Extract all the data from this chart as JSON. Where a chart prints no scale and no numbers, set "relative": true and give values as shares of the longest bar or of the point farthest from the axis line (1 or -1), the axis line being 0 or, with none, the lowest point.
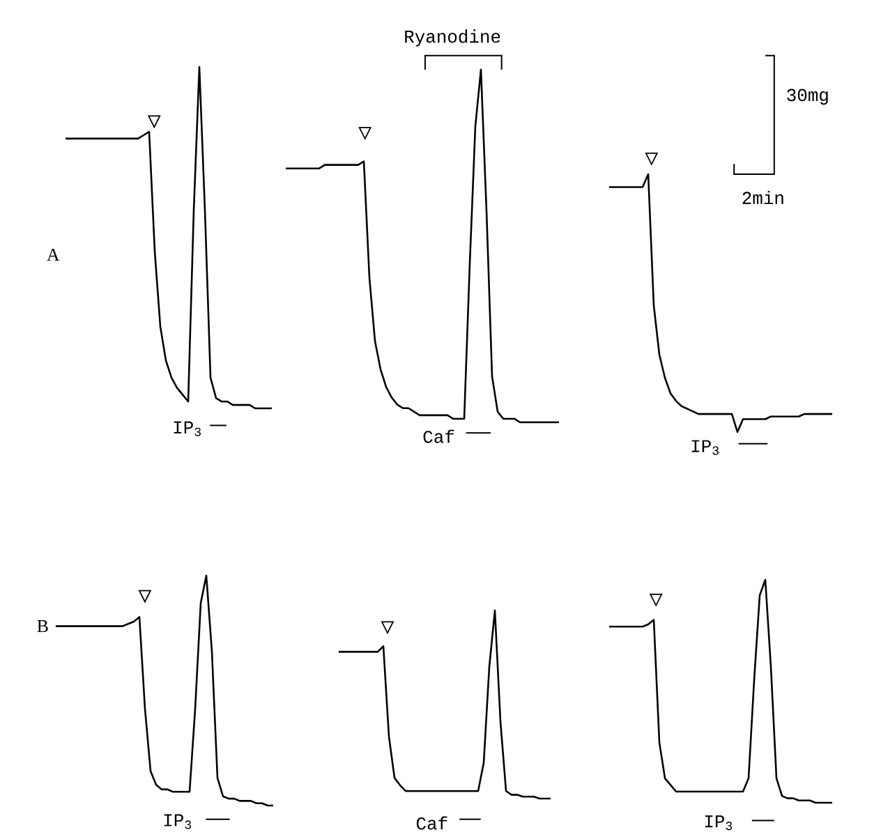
{
  "chart_data": [
    {
      "type": "line",
      "relative": true,
      "color": "#000000",
      "annotations": [
        "A",
        "IP$_{3}$"
      ],
      "categories": [
        null,
        null,
        null,
        null,
        null,
        null,
        null,
        null,
        null,
        null,
        null,
        null,
        null,
        null,
        null,
        null,
        null,
        null,
        null,
        null,
        null,
        null,
        null,
        null,
        null,
        null,
        null,
        null,
        null,
        null,
        null,
        null,
        null,
        null,
        null,
        null,
        null,
        null
      ],
      "values": [
        0.79,
        0.79,
        0.79,
        0.79,
        0.79,
        0.79,
        0.79,
        0.79,
        0.79,
        0.79,
        0.79,
        0.79,
        0.79,
        0.79,
        0.8,
        0.81,
        0.46,
        0.24,
        0.14,
        0.09,
        0.06,
        0.04,
        0.02,
        0.58,
        1.0,
        0.58,
        0.09,
        0.03,
        0.02,
        0.02,
        0.01,
        0.01,
        0.01,
        0.01,
        0,
        0,
        0,
        0
      ]
    },
    {
      "type": "line",
      "relative": true,
      "color": "#000000",
      "annotations": [
        "Ryanodine",
        "Caf"
      ],
      "categories": [
        null,
        null,
        null,
        null,
        null,
        null,
        null,
        null,
        null,
        null,
        null,
        null,
        null,
        null,
        null,
        null,
        null,
        null,
        null,
        null,
        null,
        null,
        null,
        null,
        null,
        null,
        null,
        null,
        null,
        null,
        null,
        null,
        null,
        null,
        null,
        null,
        null,
        null,
        null,
        null,
        null,
        null,
        null,
        null,
        null,
        null,
        null,
        null,
        null,
        null
      ],
      "values": [
        0.72,
        0.72,
        0.72,
        0.72,
        0.72,
        0.72,
        0.72,
        0.73,
        0.73,
        0.73,
        0.73,
        0.73,
        0.73,
        0.73,
        0.74,
        0.41,
        0.23,
        0.15,
        0.1,
        0.07,
        0.05,
        0.04,
        0.04,
        0.03,
        0.02,
        0.02,
        0.02,
        0.02,
        0.02,
        0.02,
        0.01,
        0.01,
        0.01,
        0.45,
        0.84,
        1.0,
        0.6,
        0.13,
        0.03,
        0.01,
        0.01,
        0.01,
        0,
        0,
        0,
        0,
        0,
        0,
        0,
        0
      ]
    },
    {
      "type": "line",
      "relative": true,
      "color": "#000000",
      "annotations": [
        "IP$_{3}$",
        "30mg",
        "2min"
      ],
      "categories": [
        null,
        null,
        null,
        null,
        null,
        null,
        null,
        null,
        null,
        null,
        null,
        null,
        null,
        null,
        null,
        null,
        null,
        null,
        null,
        null,
        null,
        null,
        null,
        null,
        null,
        null,
        null,
        null,
        null,
        null,
        null,
        null,
        null,
        null,
        null,
        null,
        null,
        null,
        null,
        null,
        null
      ],
      "values": [
        0.95,
        0.95,
        0.95,
        0.95,
        0.95,
        0.95,
        0.95,
        1.0,
        0.49,
        0.3,
        0.21,
        0.15,
        0.12,
        0.1,
        0.09,
        0.08,
        0.07,
        0.07,
        0.07,
        0.07,
        0.07,
        0.07,
        0.07,
        0,
        0.05,
        0.05,
        0.05,
        0.05,
        0.05,
        0.06,
        0.06,
        0.06,
        0.06,
        0.06,
        0.06,
        0.07,
        0.07,
        0.07,
        0.07,
        0.07,
        0.07
      ]
    },
    {
      "type": "line",
      "relative": true,
      "color": "#000000",
      "annotations": [
        "B",
        "IP$_{3}$"
      ],
      "categories": [
        null,
        null,
        null,
        null,
        null,
        null,
        null,
        null,
        null,
        null,
        null,
        null,
        null,
        null,
        null,
        null,
        null,
        null,
        null,
        null,
        null,
        null,
        null,
        null,
        null,
        null,
        null,
        null,
        null,
        null,
        null,
        null,
        null,
        null,
        null,
        null,
        null,
        null,
        null,
        null
      ],
      "values": [
        0.78,
        0.78,
        0.78,
        0.78,
        0.78,
        0.78,
        0.78,
        0.78,
        0.78,
        0.78,
        0.78,
        0.78,
        0.78,
        0.79,
        0.8,
        0.82,
        0.42,
        0.15,
        0.09,
        0.07,
        0.07,
        0.06,
        0.06,
        0.06,
        0.06,
        0.42,
        0.88,
        1.0,
        0.67,
        0.12,
        0.04,
        0.03,
        0.03,
        0.02,
        0.02,
        0.02,
        0.01,
        0.01,
        0,
        0
      ]
    },
    {
      "type": "line",
      "relative": true,
      "color": "#000000",
      "annotations": [
        "Caf"
      ],
      "categories": [
        null,
        null,
        null,
        null,
        null,
        null,
        null,
        null,
        null,
        null,
        null,
        null,
        null,
        null,
        null,
        null,
        null,
        null,
        null,
        null,
        null,
        null,
        null,
        null,
        null,
        null,
        null,
        null,
        null,
        null,
        null,
        null,
        null,
        null,
        null,
        null,
        null,
        null,
        null
      ],
      "values": [
        0.78,
        0.78,
        0.78,
        0.78,
        0.78,
        0.78,
        0.78,
        0.78,
        0.81,
        0.33,
        0.11,
        0.07,
        0.04,
        0.04,
        0.04,
        0.04,
        0.04,
        0.04,
        0.04,
        0.04,
        0.04,
        0.04,
        0.04,
        0.04,
        0.04,
        0.04,
        0.19,
        0.7,
        1.0,
        0.41,
        0.04,
        0.02,
        0.02,
        0.01,
        0.01,
        0.01,
        0,
        0,
        0
      ]
    },
    {
      "type": "line",
      "relative": true,
      "color": "#000000",
      "annotations": [
        "IP$_{3}$"
      ],
      "categories": [
        null,
        null,
        null,
        null,
        null,
        null,
        null,
        null,
        null,
        null,
        null,
        null,
        null,
        null,
        null,
        null,
        null,
        null,
        null,
        null,
        null,
        null,
        null,
        null,
        null,
        null,
        null,
        null,
        null,
        null,
        null,
        null,
        null,
        null,
        null,
        null,
        null,
        null,
        null,
        null,
        null
      ],
      "values": [
        0.79,
        0.79,
        0.79,
        0.79,
        0.79,
        0.79,
        0.79,
        0.8,
        0.82,
        0.27,
        0.11,
        0.08,
        0.05,
        0.05,
        0.05,
        0.05,
        0.05,
        0.05,
        0.05,
        0.05,
        0.05,
        0.05,
        0.05,
        0.05,
        0.05,
        0.11,
        0.55,
        0.93,
        1.0,
        0.61,
        0.11,
        0.03,
        0.02,
        0.02,
        0.01,
        0.01,
        0.01,
        0,
        0,
        0,
        0
      ]
    }
  ]
}
